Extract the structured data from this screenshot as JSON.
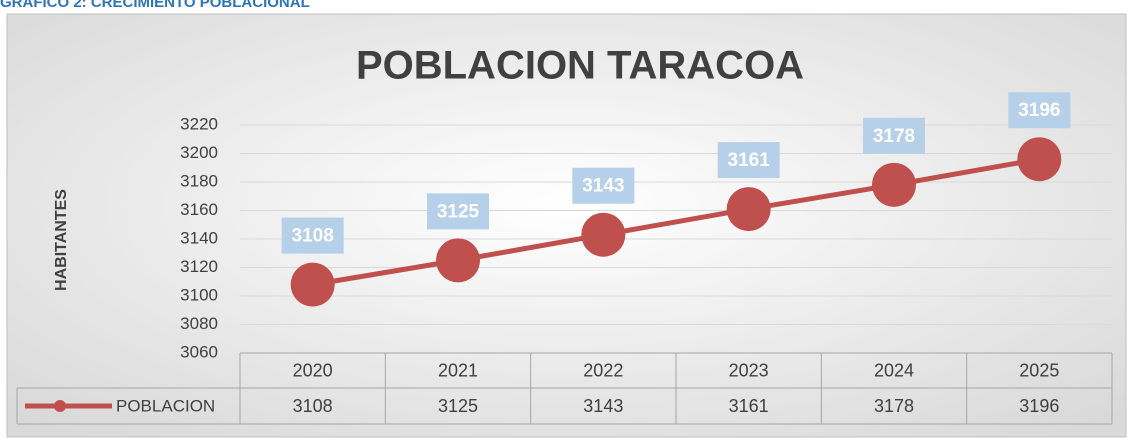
{
  "heading": "GRAFICO 2: CRECIMIENTO POBLACIONAL",
  "chart_data": {
    "type": "line",
    "title": "POBLACION TARACOA",
    "y_label": "HABITANTES",
    "categories": [
      "2020",
      "2021",
      "2022",
      "2023",
      "2024",
      "2025"
    ],
    "series": [
      {
        "name": "POBLACION",
        "color": "#c0504d",
        "values": [
          3108,
          3125,
          3143,
          3161,
          3178,
          3196
        ]
      }
    ],
    "ylim": [
      3060,
      3220
    ],
    "yticks": [
      3060,
      3080,
      3100,
      3120,
      3140,
      3160,
      3180,
      3200,
      3220
    ],
    "grid": true,
    "label_color": "#b7d0ea"
  }
}
